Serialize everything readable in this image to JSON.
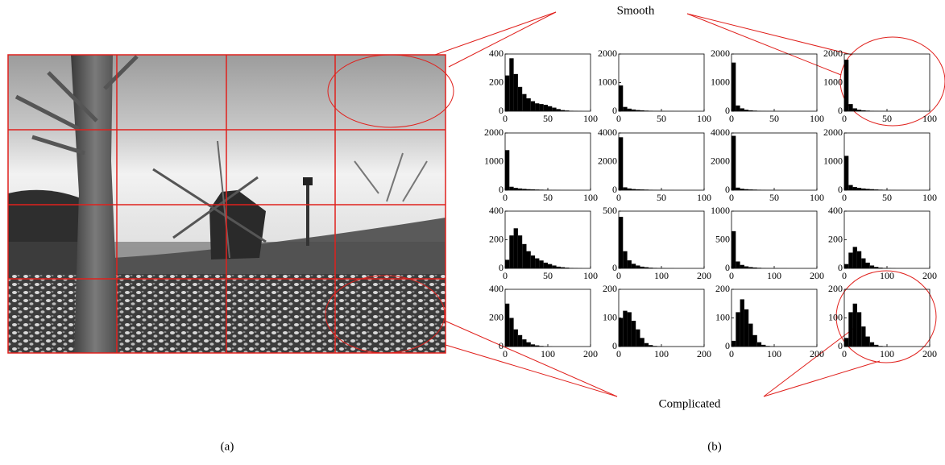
{
  "figure": {
    "annotations": {
      "smooth": "Smooth",
      "complicated": "Complicated"
    },
    "panels": [
      "(a)",
      "(b)"
    ]
  },
  "chart_data": [
    {
      "type": "histogram",
      "color": "#000000",
      "xlim": [
        0,
        100
      ],
      "ylim": [
        0,
        400
      ],
      "xticks": [
        0,
        50,
        100
      ],
      "yticks": [
        0,
        200,
        400
      ],
      "bins": [
        0,
        5,
        10,
        15,
        20,
        25,
        30,
        35,
        40,
        45,
        50,
        55,
        60,
        65,
        70,
        75,
        80,
        85,
        90,
        95,
        100
      ],
      "counts": [
        250,
        370,
        260,
        170,
        120,
        90,
        70,
        55,
        50,
        45,
        35,
        25,
        15,
        8,
        5,
        3,
        2,
        1,
        0,
        0
      ]
    },
    {
      "type": "histogram",
      "color": "#000000",
      "xlim": [
        0,
        100
      ],
      "ylim": [
        0,
        2000
      ],
      "xticks": [
        0,
        50,
        100
      ],
      "yticks": [
        0,
        1000,
        2000
      ],
      "bins": [
        0,
        5,
        10,
        15,
        20,
        25,
        30,
        35,
        40,
        45,
        50,
        55,
        60,
        65,
        70,
        75,
        80,
        85,
        90,
        95,
        100
      ],
      "counts": [
        900,
        150,
        90,
        60,
        40,
        30,
        20,
        15,
        10,
        8,
        6,
        5,
        4,
        3,
        2,
        2,
        1,
        1,
        0,
        0
      ]
    },
    {
      "type": "histogram",
      "color": "#000000",
      "xlim": [
        0,
        100
      ],
      "ylim": [
        0,
        2000
      ],
      "xticks": [
        0,
        50,
        100
      ],
      "yticks": [
        0,
        1000,
        2000
      ],
      "bins": [
        0,
        5,
        10,
        15,
        20,
        25,
        30,
        35,
        40,
        45,
        50,
        55,
        60,
        65,
        70,
        75,
        80,
        85,
        90,
        95,
        100
      ],
      "counts": [
        1700,
        200,
        100,
        50,
        30,
        20,
        12,
        8,
        6,
        4,
        3,
        2,
        2,
        1,
        1,
        0,
        0,
        0,
        0,
        0
      ]
    },
    {
      "type": "histogram",
      "color": "#000000",
      "xlim": [
        0,
        100
      ],
      "ylim": [
        0,
        2000
      ],
      "xticks": [
        0,
        50,
        100
      ],
      "yticks": [
        0,
        1000,
        2000
      ],
      "bins": [
        0,
        5,
        10,
        15,
        20,
        25,
        30,
        35,
        40,
        45,
        50,
        55,
        60,
        65,
        70,
        75,
        80,
        85,
        90,
        95,
        100
      ],
      "counts": [
        1800,
        250,
        100,
        50,
        30,
        20,
        12,
        8,
        6,
        4,
        3,
        2,
        2,
        1,
        1,
        0,
        0,
        0,
        0,
        0
      ]
    },
    {
      "type": "histogram",
      "color": "#000000",
      "xlim": [
        0,
        100
      ],
      "ylim": [
        0,
        2000
      ],
      "xticks": [
        0,
        50,
        100
      ],
      "yticks": [
        0,
        1000,
        2000
      ],
      "bins": [
        0,
        5,
        10,
        15,
        20,
        25,
        30,
        35,
        40,
        45,
        50,
        55,
        60,
        65,
        70,
        75,
        80,
        85,
        90,
        95,
        100
      ],
      "counts": [
        1400,
        120,
        80,
        60,
        45,
        35,
        28,
        22,
        18,
        14,
        10,
        8,
        6,
        4,
        3,
        2,
        1,
        1,
        0,
        0
      ]
    },
    {
      "type": "histogram",
      "color": "#000000",
      "xlim": [
        0,
        100
      ],
      "ylim": [
        0,
        4000
      ],
      "xticks": [
        0,
        50,
        100
      ],
      "yticks": [
        0,
        2000,
        4000
      ],
      "bins": [
        0,
        5,
        10,
        15,
        20,
        25,
        30,
        35,
        40,
        45,
        50,
        55,
        60,
        65,
        70,
        75,
        80,
        85,
        90,
        95,
        100
      ],
      "counts": [
        3700,
        200,
        120,
        80,
        60,
        50,
        40,
        30,
        22,
        16,
        12,
        8,
        6,
        4,
        3,
        2,
        1,
        1,
        0,
        0
      ]
    },
    {
      "type": "histogram",
      "color": "#000000",
      "xlim": [
        0,
        100
      ],
      "ylim": [
        0,
        4000
      ],
      "xticks": [
        0,
        50,
        100
      ],
      "yticks": [
        0,
        2000,
        4000
      ],
      "bins": [
        0,
        5,
        10,
        15,
        20,
        25,
        30,
        35,
        40,
        45,
        50,
        55,
        60,
        65,
        70,
        75,
        80,
        85,
        90,
        95,
        100
      ],
      "counts": [
        3800,
        180,
        100,
        70,
        50,
        40,
        30,
        22,
        16,
        12,
        8,
        6,
        4,
        3,
        2,
        1,
        1,
        0,
        0,
        0
      ]
    },
    {
      "type": "histogram",
      "color": "#000000",
      "xlim": [
        0,
        100
      ],
      "ylim": [
        0,
        2000
      ],
      "xticks": [
        0,
        50,
        100
      ],
      "yticks": [
        0,
        1000,
        2000
      ],
      "bins": [
        0,
        5,
        10,
        15,
        20,
        25,
        30,
        35,
        40,
        45,
        50,
        55,
        60,
        65,
        70,
        75,
        80,
        85,
        90,
        95,
        100
      ],
      "counts": [
        1200,
        180,
        110,
        80,
        60,
        45,
        35,
        25,
        18,
        12,
        8,
        6,
        4,
        3,
        2,
        1,
        1,
        0,
        0,
        0
      ]
    },
    {
      "type": "histogram",
      "color": "#000000",
      "xlim": [
        0,
        100
      ],
      "ylim": [
        0,
        400
      ],
      "xticks": [
        0,
        50,
        100
      ],
      "yticks": [
        0,
        200,
        400
      ],
      "bins": [
        0,
        5,
        10,
        15,
        20,
        25,
        30,
        35,
        40,
        45,
        50,
        55,
        60,
        65,
        70,
        75,
        80,
        85,
        90,
        95,
        100
      ],
      "counts": [
        60,
        230,
        280,
        230,
        170,
        120,
        90,
        70,
        55,
        40,
        30,
        20,
        12,
        8,
        5,
        3,
        2,
        1,
        0,
        0
      ]
    },
    {
      "type": "histogram",
      "color": "#000000",
      "xlim": [
        0,
        200
      ],
      "ylim": [
        0,
        500
      ],
      "xticks": [
        0,
        100,
        200
      ],
      "yticks": [
        0,
        500
      ],
      "bins": [
        0,
        10,
        20,
        30,
        40,
        50,
        60,
        70,
        80,
        90,
        100,
        110,
        120,
        130,
        140,
        150,
        160,
        170,
        180,
        190,
        200
      ],
      "counts": [
        450,
        150,
        70,
        40,
        25,
        15,
        10,
        6,
        4,
        3,
        2,
        1,
        1,
        0,
        0,
        0,
        0,
        0,
        0,
        0
      ]
    },
    {
      "type": "histogram",
      "color": "#000000",
      "xlim": [
        0,
        200
      ],
      "ylim": [
        0,
        1000
      ],
      "xticks": [
        0,
        100,
        200
      ],
      "yticks": [
        0,
        500,
        1000
      ],
      "bins": [
        0,
        10,
        20,
        30,
        40,
        50,
        60,
        70,
        80,
        90,
        100,
        110,
        120,
        130,
        140,
        150,
        160,
        170,
        180,
        190,
        200
      ],
      "counts": [
        650,
        120,
        60,
        35,
        22,
        15,
        10,
        6,
        4,
        3,
        2,
        1,
        1,
        0,
        0,
        0,
        0,
        0,
        0,
        0
      ]
    },
    {
      "type": "histogram",
      "color": "#000000",
      "xlim": [
        0,
        200
      ],
      "ylim": [
        0,
        400
      ],
      "xticks": [
        0,
        100,
        200
      ],
      "yticks": [
        0,
        200,
        400
      ],
      "bins": [
        0,
        10,
        20,
        30,
        40,
        50,
        60,
        70,
        80,
        90,
        100,
        110,
        120,
        130,
        140,
        150,
        160,
        170,
        180,
        190,
        200
      ],
      "counts": [
        30,
        110,
        150,
        120,
        70,
        40,
        20,
        10,
        5,
        3,
        2,
        1,
        0,
        0,
        0,
        0,
        0,
        0,
        0,
        0
      ]
    },
    {
      "type": "histogram",
      "color": "#000000",
      "xlim": [
        0,
        200
      ],
      "ylim": [
        0,
        400
      ],
      "xticks": [
        0,
        100,
        200
      ],
      "yticks": [
        0,
        200,
        400
      ],
      "bins": [
        0,
        10,
        20,
        30,
        40,
        50,
        60,
        70,
        80,
        90,
        100,
        110,
        120,
        130,
        140,
        150,
        160,
        170,
        180,
        190,
        200
      ],
      "counts": [
        300,
        200,
        120,
        80,
        50,
        30,
        15,
        8,
        4,
        2,
        1,
        0,
        0,
        0,
        0,
        0,
        0,
        0,
        0,
        0
      ]
    },
    {
      "type": "histogram",
      "color": "#000000",
      "xlim": [
        0,
        200
      ],
      "ylim": [
        0,
        200
      ],
      "xticks": [
        0,
        100,
        200
      ],
      "yticks": [
        0,
        100,
        200
      ],
      "bins": [
        0,
        10,
        20,
        30,
        40,
        50,
        60,
        70,
        80,
        90,
        100,
        110,
        120,
        130,
        140,
        150,
        160,
        170,
        180,
        190,
        200
      ],
      "counts": [
        100,
        125,
        120,
        90,
        60,
        30,
        12,
        5,
        2,
        1,
        0,
        0,
        0,
        0,
        0,
        0,
        0,
        0,
        0,
        0
      ]
    },
    {
      "type": "histogram",
      "color": "#000000",
      "xlim": [
        0,
        200
      ],
      "ylim": [
        0,
        200
      ],
      "xticks": [
        0,
        100,
        200
      ],
      "yticks": [
        0,
        100,
        200
      ],
      "bins": [
        0,
        10,
        20,
        30,
        40,
        50,
        60,
        70,
        80,
        90,
        100,
        110,
        120,
        130,
        140,
        150,
        160,
        170,
        180,
        190,
        200
      ],
      "counts": [
        20,
        120,
        165,
        130,
        80,
        40,
        15,
        6,
        2,
        1,
        0,
        0,
        0,
        0,
        0,
        0,
        0,
        0,
        0,
        0
      ]
    },
    {
      "type": "histogram",
      "color": "#000000",
      "xlim": [
        0,
        200
      ],
      "ylim": [
        0,
        200
      ],
      "xticks": [
        0,
        100,
        200
      ],
      "yticks": [
        0,
        100,
        200
      ],
      "bins": [
        0,
        10,
        20,
        30,
        40,
        50,
        60,
        70,
        80,
        90,
        100,
        110,
        120,
        130,
        140,
        150,
        160,
        170,
        180,
        190,
        200
      ],
      "counts": [
        30,
        120,
        150,
        120,
        70,
        35,
        15,
        6,
        2,
        1,
        0,
        0,
        0,
        0,
        0,
        0,
        0,
        0,
        0,
        0
      ]
    }
  ]
}
